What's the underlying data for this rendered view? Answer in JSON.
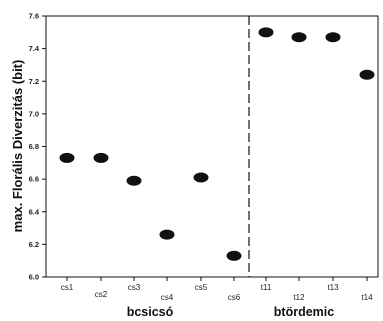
{
  "chart_data": {
    "type": "scatter",
    "title": "",
    "ylabel": "max. Florális Diverzitás (bit)",
    "xlabel": "",
    "ylim": [
      6.0,
      7.6
    ],
    "yticks": [
      "6.0",
      "6.2",
      "6.4",
      "6.6",
      "6.8",
      "7.0",
      "7.2",
      "7.4",
      "7.6"
    ],
    "categories": [
      "cs1",
      "cs2",
      "cs3",
      "cs4",
      "cs5",
      "cs6",
      "t11",
      "t12",
      "t13",
      "t14"
    ],
    "values": [
      6.73,
      6.73,
      6.59,
      6.26,
      6.61,
      6.13,
      7.5,
      7.47,
      7.47,
      7.24
    ],
    "groups": [
      {
        "label": "bcsicsó",
        "categories": [
          "cs1",
          "cs2",
          "cs3",
          "cs4",
          "cs5",
          "cs6"
        ]
      },
      {
        "label": "btördemic",
        "categories": [
          "t11",
          "t12",
          "t13",
          "t14"
        ]
      }
    ],
    "divider": "dashed vertical line between cs6 and t11",
    "marker_color": "#111111",
    "grid": false
  }
}
